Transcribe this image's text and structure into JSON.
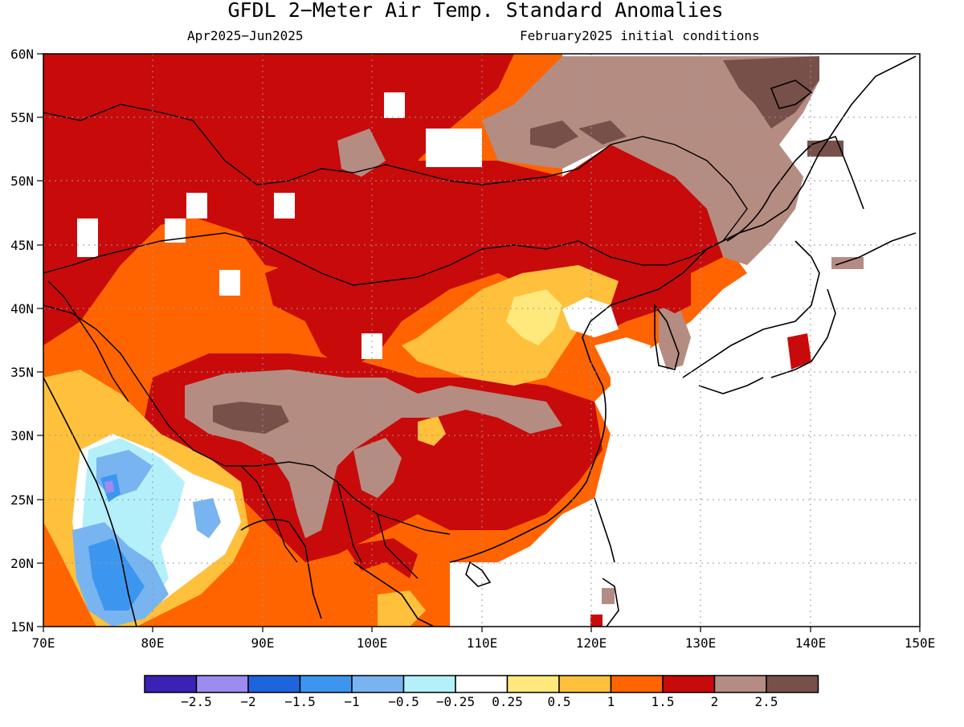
{
  "title": "GFDL 2−Meter Air Temp. Standard Anomalies",
  "period": "Apr2025−Jun2025",
  "initial_conditions": "February2025 initial conditions",
  "lat_labels": [
    "60N",
    "55N",
    "50N",
    "45N",
    "40N",
    "35N",
    "30N",
    "25N",
    "20N",
    "15N"
  ],
  "lon_labels": [
    "70E",
    "80E",
    "90E",
    "100E",
    "110E",
    "120E",
    "130E",
    "140E",
    "150E"
  ],
  "legend": {
    "colors": [
      "#3b22b4",
      "#9c8cf0",
      "#1e64dc",
      "#3c96f0",
      "#78b4f0",
      "#b4f0fa",
      "#ffffff",
      "#ffe87c",
      "#ffc03c",
      "#ff6400",
      "#c80a0a",
      "#b48c82",
      "#78504a"
    ],
    "labels": [
      "−2.5",
      "−2",
      "−1.5",
      "−1",
      "−0.5",
      "−0.25",
      "0.25",
      "0.5",
      "1",
      "1.5",
      "2",
      "2.5"
    ]
  }
}
